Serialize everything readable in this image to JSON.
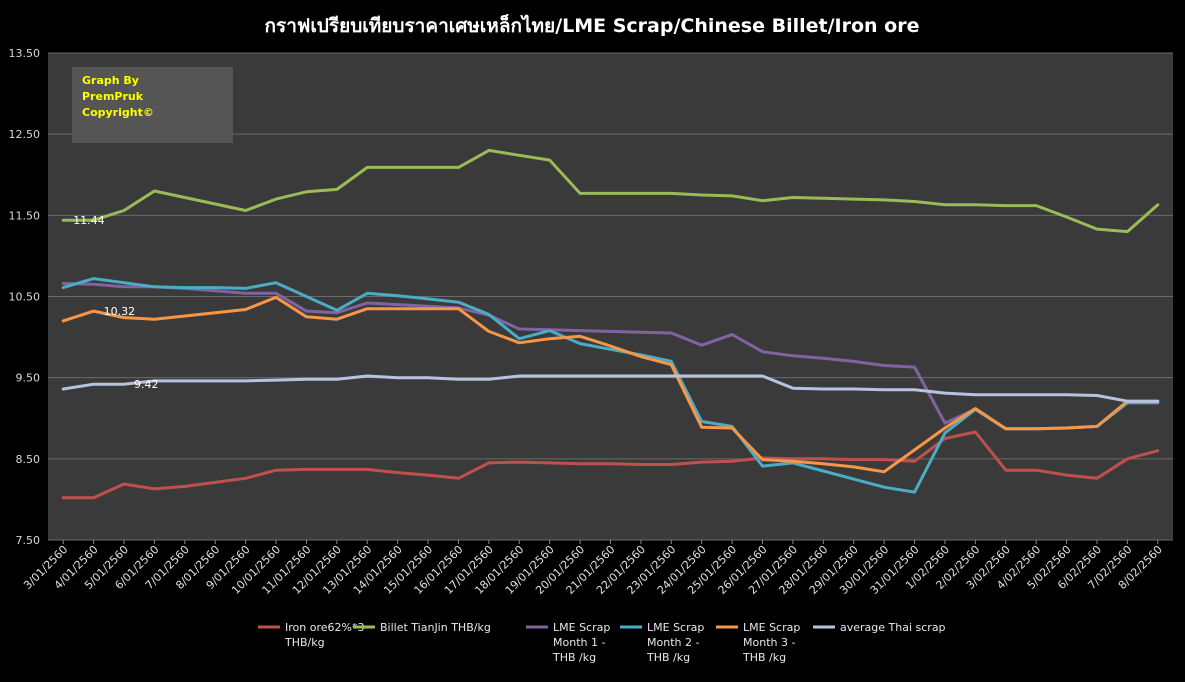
{
  "chart_data": {
    "type": "line",
    "title": "กราฟเปรียบเทียบราคาเศษเหล็กไทย/LME Scrap/Chinese Billet/Iron ore",
    "xlabel": "",
    "ylabel": "",
    "ylim": [
      7.5,
      13.5
    ],
    "yticks": [
      "7.50",
      "8.50",
      "9.50",
      "10.50",
      "11.50",
      "12.50",
      "13.50"
    ],
    "grid": true,
    "legend": "bottom",
    "watermark": [
      "Graph By",
      "PremPruk",
      "Copyright©"
    ],
    "categories": [
      "3/01/2560",
      "4/01/2560",
      "5/01/2560",
      "6/01/2560",
      "7/01/2560",
      "8/01/2560",
      "9/01/2560",
      "10/01/2560",
      "11/01/2560",
      "12/01/2560",
      "13/01/2560",
      "14/01/2560",
      "15/01/2560",
      "16/01/2560",
      "17/01/2560",
      "18/01/2560",
      "19/01/2560",
      "20/01/2560",
      "21/01/2560",
      "22/01/2560",
      "23/01/2560",
      "24/01/2560",
      "25/01/2560",
      "26/01/2560",
      "27/01/2560",
      "28/01/2560",
      "29/01/2560",
      "30/01/2560",
      "31/01/2560",
      "1/02/2560",
      "2/02/2560",
      "3/02/2560",
      "4/02/2560",
      "5/02/2560",
      "6/02/2560",
      "7/02/2560",
      "8/02/2560"
    ],
    "series": [
      {
        "name": "Iron ore62%*3 THB/kg",
        "color": "#c0504d",
        "values": [
          8.02,
          8.02,
          8.19,
          8.13,
          8.16,
          8.21,
          8.26,
          8.36,
          8.37,
          8.37,
          8.37,
          8.33,
          8.3,
          8.26,
          8.45,
          8.46,
          8.45,
          8.44,
          8.44,
          8.43,
          8.43,
          8.46,
          8.47,
          8.51,
          8.5,
          8.5,
          8.49,
          8.49,
          8.47,
          8.75,
          8.83,
          8.36,
          8.36,
          8.3,
          8.26,
          8.5,
          8.6
        ]
      },
      {
        "name": "Billet TianJin THB/kg",
        "color": "#9bbb59",
        "values": [
          11.44,
          11.44,
          11.56,
          11.8,
          11.72,
          11.64,
          11.56,
          11.7,
          11.79,
          11.82,
          12.09,
          12.09,
          12.09,
          12.09,
          12.3,
          12.24,
          12.18,
          11.77,
          11.77,
          11.77,
          11.77,
          11.75,
          11.74,
          11.68,
          11.72,
          11.71,
          11.7,
          11.69,
          11.67,
          11.63,
          11.63,
          11.62,
          11.62,
          11.48,
          11.33,
          11.3,
          11.63
        ]
      },
      {
        "name": "LME Scrap Month 1 - THB /kg",
        "color": "#8064a2",
        "values": [
          10.66,
          10.65,
          10.62,
          10.62,
          10.6,
          10.57,
          10.54,
          10.54,
          10.32,
          10.3,
          10.42,
          10.4,
          10.38,
          10.36,
          10.27,
          10.1,
          10.09,
          10.08,
          10.07,
          10.06,
          10.05,
          9.9,
          10.03,
          9.82,
          9.77,
          9.74,
          9.7,
          9.65,
          9.63,
          8.94,
          9.11,
          8.87,
          8.87,
          8.88,
          8.9,
          9.19,
          9.19
        ]
      },
      {
        "name": "LME Scrap Month 2 - THB /kg",
        "color": "#4bacc6",
        "values": [
          10.61,
          10.72,
          10.67,
          10.62,
          10.61,
          10.61,
          10.6,
          10.67,
          10.5,
          10.33,
          10.54,
          10.51,
          10.47,
          10.43,
          10.28,
          9.98,
          10.08,
          9.92,
          9.85,
          9.78,
          9.7,
          8.96,
          8.9,
          8.41,
          8.45,
          8.35,
          8.25,
          8.15,
          8.09,
          8.82,
          9.11,
          8.87,
          8.87,
          8.88,
          8.9,
          9.19,
          9.19
        ]
      },
      {
        "name": "LME Scrap Month 3 - THB /kg",
        "color": "#f79646",
        "values": [
          10.2,
          10.32,
          10.24,
          10.22,
          10.26,
          10.3,
          10.34,
          10.49,
          10.25,
          10.22,
          10.35,
          10.35,
          10.35,
          10.35,
          10.07,
          9.93,
          9.98,
          10.01,
          9.89,
          9.76,
          9.66,
          8.89,
          8.88,
          8.49,
          8.47,
          8.44,
          8.4,
          8.34,
          8.61,
          8.88,
          9.12,
          8.87,
          8.87,
          8.88,
          8.9,
          9.21,
          9.21
        ]
      },
      {
        "name": "average Thai scrap",
        "color": "#b9c3e0",
        "values": [
          9.36,
          9.42,
          9.42,
          9.46,
          9.46,
          9.46,
          9.46,
          9.47,
          9.48,
          9.48,
          9.52,
          9.5,
          9.5,
          9.48,
          9.48,
          9.52,
          9.52,
          9.52,
          9.52,
          9.52,
          9.52,
          9.52,
          9.52,
          9.52,
          9.37,
          9.36,
          9.36,
          9.35,
          9.35,
          9.31,
          9.29,
          9.29,
          9.29,
          9.29,
          9.28,
          9.21,
          9.21
        ]
      }
    ],
    "annotations": [
      {
        "series": 1,
        "index": 0,
        "text": "11.44"
      },
      {
        "series": 4,
        "index": 1,
        "text": "10.32"
      },
      {
        "series": 5,
        "index": 2,
        "text": "9.42"
      }
    ]
  }
}
